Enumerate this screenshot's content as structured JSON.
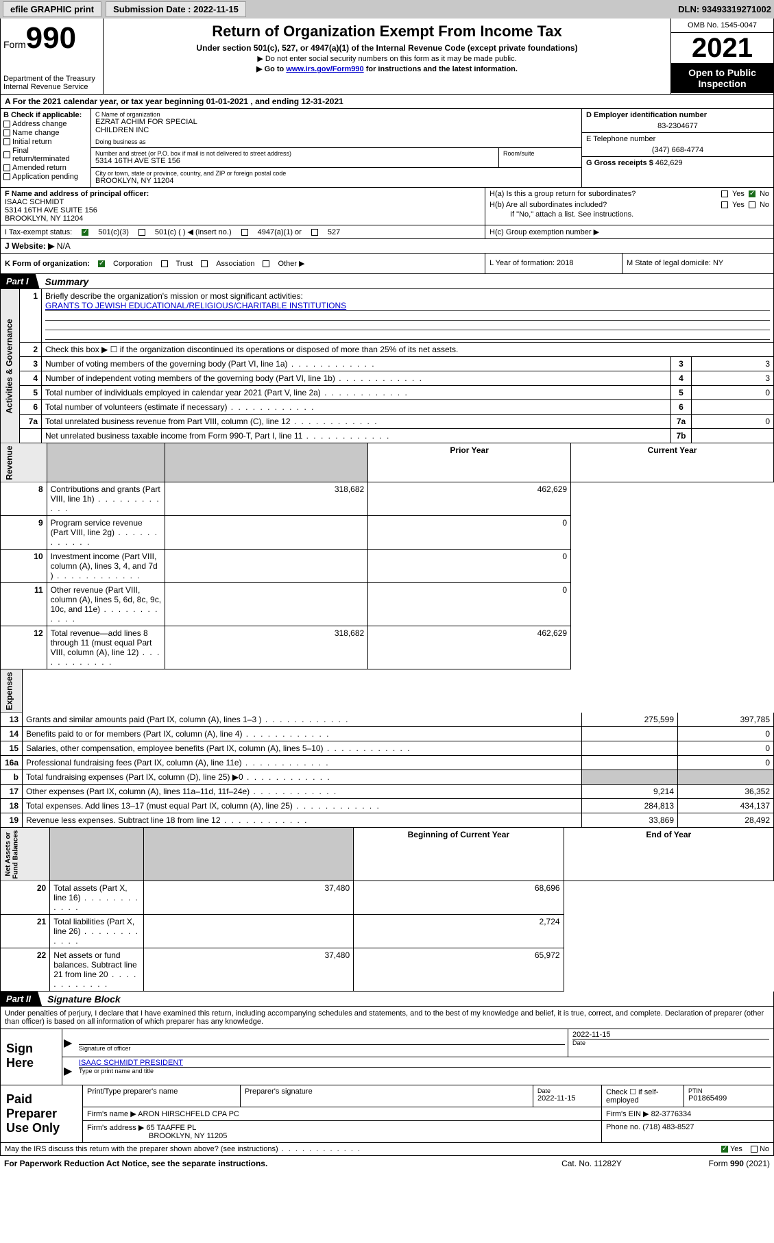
{
  "topbar": {
    "efile_label": "efile GRAPHIC print",
    "submission_label": "Submission Date : 2022-11-15",
    "dln_label": "DLN: 93493319271002"
  },
  "header": {
    "form_prefix": "Form",
    "form_number": "990",
    "dept1": "Department of the Treasury",
    "dept2": "Internal Revenue Service",
    "title": "Return of Organization Exempt From Income Tax",
    "sub1": "Under section 501(c), 527, or 4947(a)(1) of the Internal Revenue Code (except private foundations)",
    "sub2_pre": "▶ Do not enter social security numbers on this form as it may be made public.",
    "sub3_pre": "▶ Go to ",
    "sub3_link": "www.irs.gov/Form990",
    "sub3_post": " for instructions and the latest information.",
    "omb": "OMB No. 1545-0047",
    "year": "2021",
    "open": "Open to Public Inspection"
  },
  "line_a": {
    "prefix": "A For the 2021 calendar year, or tax year beginning ",
    "start": "01-01-2021",
    "mid": " , and ending ",
    "end": "12-31-2021"
  },
  "col_b": {
    "header": "B Check if applicable:",
    "opts": [
      "Address change",
      "Name change",
      "Initial return",
      "Final return/terminated",
      "Amended return",
      "Application pending"
    ]
  },
  "org": {
    "c_label": "C Name of organization",
    "name1": "EZRAT ACHIM FOR SPECIAL",
    "name2": "CHILDREN INC",
    "dba_label": "Doing business as",
    "addr_label": "Number and street (or P.O. box if mail is not delivered to street address)",
    "addr": "5314 16TH AVE STE 156",
    "room_label": "Room/suite",
    "city_label": "City or town, state or province, country, and ZIP or foreign postal code",
    "city": "BROOKLYN, NY  11204"
  },
  "col_d": {
    "label": "D Employer identification number",
    "ein": "83-2304677",
    "e_label": "E Telephone number",
    "phone": "(347) 668-4774",
    "g_label": "G Gross receipts $",
    "gross": "462,629"
  },
  "row_f": {
    "f_label": "F Name and address of principal officer:",
    "name": "ISAAC SCHMIDT",
    "addr1": "5314 16TH AVE SUITE 156",
    "addr2": "BROOKLYN, NY  11204",
    "ha_label": "H(a)  Is this a group return for subordinates?",
    "hb_label": "H(b)  Are all subordinates included?",
    "hb_note": "If \"No,\" attach a list. See instructions.",
    "yes": "Yes",
    "no": "No"
  },
  "row_i": {
    "label": "I    Tax-exempt status:",
    "c3": "501(c)(3)",
    "c_blank": "501(c) (   ) ◀ (insert no.)",
    "a1": "4947(a)(1) or",
    "s527": "527",
    "hc_label": "H(c)  Group exemption number ▶"
  },
  "row_j": {
    "label": "J   Website: ▶",
    "val": "N/A"
  },
  "row_k": {
    "label": "K Form of organization:",
    "corp": "Corporation",
    "trust": "Trust",
    "assoc": "Association",
    "other": "Other ▶",
    "l_label": "L Year of formation: 2018",
    "m_label": "M State of legal domicile: NY"
  },
  "part1": {
    "hdr": "Part I",
    "title": "Summary",
    "q1": "Briefly describe the organization's mission or most significant activities:",
    "mission": "GRANTS TO JEWISH EDUCATIONAL/RELIGIOUS/CHARITABLE INSTITUTIONS",
    "q2": "Check this box ▶ ☐  if the organization discontinued its operations or disposed of more than 25% of its net assets.",
    "rows_gov": [
      {
        "n": "3",
        "t": "Number of voting members of the governing body (Part VI, line 1a)",
        "bn": "3",
        "v": "3"
      },
      {
        "n": "4",
        "t": "Number of independent voting members of the governing body (Part VI, line 1b)",
        "bn": "4",
        "v": "3"
      },
      {
        "n": "5",
        "t": "Total number of individuals employed in calendar year 2021 (Part V, line 2a)",
        "bn": "5",
        "v": "0"
      },
      {
        "n": "6",
        "t": "Total number of volunteers (estimate if necessary)",
        "bn": "6",
        "v": ""
      },
      {
        "n": "7a",
        "t": "Total unrelated business revenue from Part VIII, column (C), line 12",
        "bn": "7a",
        "v": "0"
      },
      {
        "n": "",
        "t": "Net unrelated business taxable income from Form 990-T, Part I, line 11",
        "bn": "7b",
        "v": ""
      }
    ],
    "col_prior": "Prior Year",
    "col_curr": "Current Year",
    "rows_rev": [
      {
        "n": "8",
        "t": "Contributions and grants (Part VIII, line 1h)",
        "p": "318,682",
        "c": "462,629"
      },
      {
        "n": "9",
        "t": "Program service revenue (Part VIII, line 2g)",
        "p": "",
        "c": "0"
      },
      {
        "n": "10",
        "t": "Investment income (Part VIII, column (A), lines 3, 4, and 7d )",
        "p": "",
        "c": "0"
      },
      {
        "n": "11",
        "t": "Other revenue (Part VIII, column (A), lines 5, 6d, 8c, 9c, 10c, and 11e)",
        "p": "",
        "c": "0"
      },
      {
        "n": "12",
        "t": "Total revenue—add lines 8 through 11 (must equal Part VIII, column (A), line 12)",
        "p": "318,682",
        "c": "462,629"
      }
    ],
    "rows_exp": [
      {
        "n": "13",
        "t": "Grants and similar amounts paid (Part IX, column (A), lines 1–3 )",
        "p": "275,599",
        "c": "397,785"
      },
      {
        "n": "14",
        "t": "Benefits paid to or for members (Part IX, column (A), line 4)",
        "p": "",
        "c": "0"
      },
      {
        "n": "15",
        "t": "Salaries, other compensation, employee benefits (Part IX, column (A), lines 5–10)",
        "p": "",
        "c": "0"
      },
      {
        "n": "16a",
        "t": "Professional fundraising fees (Part IX, column (A), line 11e)",
        "p": "",
        "c": "0"
      },
      {
        "n": "b",
        "t": "Total fundraising expenses (Part IX, column (D), line 25) ▶0",
        "p": "SHADE",
        "c": "SHADE"
      },
      {
        "n": "17",
        "t": "Other expenses (Part IX, column (A), lines 11a–11d, 11f–24e)",
        "p": "9,214",
        "c": "36,352"
      },
      {
        "n": "18",
        "t": "Total expenses. Add lines 13–17 (must equal Part IX, column (A), line 25)",
        "p": "284,813",
        "c": "434,137"
      },
      {
        "n": "19",
        "t": "Revenue less expenses. Subtract line 18 from line 12",
        "p": "33,869",
        "c": "28,492"
      }
    ],
    "col_begin": "Beginning of Current Year",
    "col_end": "End of Year",
    "rows_net": [
      {
        "n": "20",
        "t": "Total assets (Part X, line 16)",
        "p": "37,480",
        "c": "68,696"
      },
      {
        "n": "21",
        "t": "Total liabilities (Part X, line 26)",
        "p": "",
        "c": "2,724"
      },
      {
        "n": "22",
        "t": "Net assets or fund balances. Subtract line 21 from line 20",
        "p": "37,480",
        "c": "65,972"
      }
    ]
  },
  "part2": {
    "hdr": "Part II",
    "title": "Signature Block",
    "decl": "Under penalties of perjury, I declare that I have examined this return, including accompanying schedules and statements, and to the best of my knowledge and belief, it is true, correct, and complete. Declaration of preparer (other than officer) is based on all information of which preparer has any knowledge."
  },
  "sign": {
    "here": "Sign Here",
    "sig_label": "Signature of officer",
    "date": "2022-11-15",
    "date_label": "Date",
    "name": "ISAAC SCHMIDT PRESIDENT",
    "name_label": "Type or print name and title"
  },
  "prep": {
    "here": "Paid Preparer Use Only",
    "r1": {
      "c1": "Print/Type preparer's name",
      "c2": "Preparer's signature",
      "c3_l": "Date",
      "c3": "2022-11-15",
      "c4_l": "Check ☐ if self-employed",
      "c5_l": "PTIN",
      "c5": "P01865499"
    },
    "r2": {
      "l": "Firm's name    ▶",
      "v": "ARON HIRSCHFELD CPA PC",
      "ein_l": "Firm's EIN ▶",
      "ein": "82-3776334"
    },
    "r3": {
      "l": "Firm's address ▶",
      "v1": "65 TAAFFE PL",
      "v2": "BROOKLYN, NY  11205",
      "ph_l": "Phone no.",
      "ph": "(718) 483-8527"
    }
  },
  "footer": {
    "discuss": "May the IRS discuss this return with the preparer shown above? (see instructions)",
    "yes": "Yes",
    "no": "No",
    "paperwork": "For Paperwork Reduction Act Notice, see the separate instructions.",
    "cat": "Cat. No. 11282Y",
    "form": "Form 990 (2021)"
  }
}
